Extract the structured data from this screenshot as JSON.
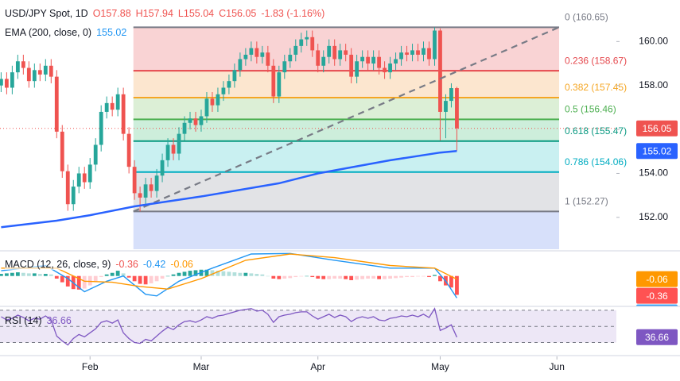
{
  "chart_data": [
    {
      "type": "candlestick",
      "title": "USD/JPY Spot, 1D",
      "ohlc_labels": [
        "O157.88",
        "H157.94",
        "L155.04",
        "C156.05"
      ],
      "change_label": "-1.83 (-1.16%)",
      "up_color": "#26a69a",
      "down_color": "#ef5350",
      "x": [
        0,
        1,
        2,
        3,
        4,
        5,
        6,
        7,
        8,
        9,
        10,
        11,
        12,
        13,
        14,
        15,
        16,
        17,
        18,
        19,
        20,
        21,
        22,
        23,
        24,
        25,
        26,
        27,
        28,
        29,
        30,
        31,
        32,
        33,
        34,
        35,
        36,
        37,
        38,
        39,
        40,
        41,
        42,
        43,
        44,
        45,
        46,
        47,
        48,
        49,
        50,
        51,
        52,
        53,
        54,
        55,
        56,
        57,
        58,
        59,
        60,
        61,
        62,
        63,
        64,
        65,
        66,
        67,
        68,
        69,
        70,
        71,
        72,
        73,
        74,
        75,
        76,
        77,
        78,
        79,
        80,
        81,
        82
      ],
      "open": [
        158.0,
        158.3,
        157.9,
        158.6,
        159.1,
        158.8,
        158.2,
        158.7,
        158.5,
        158.9,
        158.4,
        155.9,
        154.1,
        152.6,
        153.4,
        154.0,
        153.6,
        154.4,
        155.3,
        156.8,
        157.2,
        156.9,
        157.6,
        155.8,
        154.3,
        153.1,
        152.9,
        153.5,
        153.2,
        153.9,
        154.6,
        155.3,
        154.9,
        155.8,
        156.3,
        156.5,
        156.2,
        156.6,
        157.4,
        157.1,
        157.6,
        157.9,
        158.2,
        158.7,
        159.2,
        159.4,
        159.7,
        159.3,
        159.5,
        158.9,
        157.5,
        158.6,
        159.1,
        159.4,
        159.8,
        160.1,
        160.2,
        159.6,
        158.9,
        159.3,
        159.8,
        159.2,
        159.6,
        159.4,
        158.4,
        159.1,
        159.3,
        159.0,
        159.3,
        158.8,
        158.6,
        159.0,
        159.2,
        159.5,
        159.4,
        159.6,
        159.4,
        159.7,
        159.2,
        160.5,
        156.8,
        157.3,
        157.88
      ],
      "high": [
        158.6,
        158.6,
        158.9,
        159.4,
        159.4,
        159.1,
        159.0,
        159.0,
        159.2,
        159.2,
        158.7,
        156.2,
        154.4,
        153.7,
        154.3,
        154.3,
        154.7,
        155.6,
        157.1,
        157.5,
        157.5,
        157.9,
        157.9,
        156.1,
        154.6,
        153.4,
        153.8,
        153.8,
        154.2,
        154.9,
        155.6,
        155.6,
        156.1,
        156.6,
        156.8,
        156.8,
        156.9,
        157.7,
        157.7,
        157.9,
        158.2,
        158.5,
        159.0,
        159.5,
        159.7,
        160.0,
        160.0,
        159.8,
        159.8,
        159.2,
        158.9,
        159.4,
        159.7,
        160.1,
        160.4,
        160.5,
        160.5,
        159.9,
        159.6,
        160.1,
        160.1,
        159.9,
        159.9,
        159.7,
        159.4,
        159.6,
        159.6,
        159.6,
        159.6,
        159.1,
        159.3,
        159.5,
        159.8,
        159.8,
        159.9,
        159.9,
        160.0,
        160.0,
        160.65,
        160.6,
        157.6,
        158.1,
        157.94
      ],
      "low": [
        157.7,
        157.6,
        157.6,
        158.3,
        158.5,
        157.9,
        157.9,
        158.2,
        158.2,
        158.1,
        155.6,
        153.8,
        152.3,
        152.3,
        153.1,
        153.3,
        153.3,
        154.1,
        155.0,
        156.5,
        156.6,
        156.6,
        155.5,
        154.0,
        152.8,
        152.27,
        152.6,
        152.9,
        152.9,
        153.6,
        154.3,
        154.6,
        154.6,
        155.5,
        156.0,
        155.9,
        155.9,
        156.3,
        156.8,
        156.8,
        157.3,
        157.6,
        157.9,
        158.4,
        158.9,
        159.1,
        159.0,
        159.0,
        158.6,
        157.2,
        157.2,
        158.3,
        158.8,
        159.1,
        159.5,
        159.8,
        159.3,
        158.6,
        158.6,
        159.0,
        158.9,
        158.9,
        159.1,
        158.1,
        158.1,
        158.8,
        158.7,
        158.7,
        158.5,
        158.3,
        158.3,
        158.7,
        158.9,
        159.1,
        159.1,
        159.1,
        159.1,
        158.9,
        158.9,
        155.5,
        155.6,
        157.0,
        155.04
      ],
      "close": [
        158.3,
        157.9,
        158.6,
        159.1,
        158.8,
        158.2,
        158.7,
        158.5,
        158.9,
        158.4,
        155.9,
        154.1,
        152.6,
        153.4,
        154.0,
        153.6,
        154.4,
        155.3,
        156.8,
        157.2,
        156.9,
        157.6,
        155.8,
        154.3,
        153.1,
        152.9,
        153.5,
        153.2,
        153.9,
        154.6,
        155.3,
        154.9,
        155.8,
        156.3,
        156.5,
        156.2,
        156.6,
        157.4,
        157.1,
        157.6,
        157.9,
        158.2,
        158.7,
        159.2,
        159.4,
        159.7,
        159.3,
        159.5,
        158.9,
        157.5,
        158.6,
        159.1,
        159.4,
        159.8,
        160.1,
        160.2,
        159.6,
        158.9,
        159.3,
        159.8,
        159.2,
        159.6,
        159.4,
        158.4,
        159.1,
        159.3,
        159.0,
        159.3,
        158.8,
        158.6,
        159.0,
        159.2,
        159.5,
        159.4,
        159.6,
        159.4,
        159.7,
        159.2,
        160.5,
        156.8,
        157.3,
        157.88,
        156.05
      ],
      "xlim": [
        -0.2,
        110.7
      ],
      "xticks": [
        {
          "value": 16,
          "label": "Feb"
        },
        {
          "value": 36,
          "label": "Mar"
        },
        {
          "value": 57,
          "label": "Apr"
        },
        {
          "value": 79,
          "label": "May"
        },
        {
          "value": 100,
          "label": "Jun"
        }
      ],
      "ylim": [
        150.55,
        161.89
      ],
      "yticks": [
        {
          "value": 152,
          "label": "152.00"
        },
        {
          "value": 154,
          "label": "154.00"
        },
        {
          "value": 156,
          "label": "156.00"
        },
        {
          "value": 158,
          "label": "158.00"
        },
        {
          "value": 160,
          "label": "160.00"
        }
      ],
      "ema": {
        "name": "EMA (200, close, 0)",
        "color": "#2962ff",
        "x": [
          0,
          10,
          16,
          24,
          36,
          50,
          57,
          70,
          79,
          82
        ],
        "values": [
          151.55,
          151.85,
          152.1,
          152.5,
          152.95,
          153.55,
          154.0,
          154.6,
          154.95,
          155.02
        ]
      },
      "trend": {
        "color": "#787b86",
        "x": [
          23.8,
          100.4
        ],
        "values": [
          152.27,
          160.65
        ]
      },
      "fib": {
        "x": [
          23.8,
          100.4
        ],
        "levels": [
          {
            "label": "0 (160.65)",
            "value": 160.65,
            "color": "#787b86",
            "fill": "#f9d3d4"
          },
          {
            "label": "0.236 (158.67)",
            "value": 158.67,
            "color": "#e5484d",
            "fill": "#fce6cf"
          },
          {
            "label": "0.382 (157.45)",
            "value": 157.45,
            "color": "#f5a623",
            "fill": "#dcefd6"
          },
          {
            "label": "0.5 (156.46)",
            "value": 156.46,
            "color": "#4caf50",
            "fill": "#cdeedb"
          },
          {
            "label": "0.618 (155.47)",
            "value": 155.47,
            "color": "#089981",
            "fill": "#c9f0f1"
          },
          {
            "label": "0.786 (154.06)",
            "value": 154.06,
            "color": "#00acc1",
            "fill": "#e2e3e6"
          },
          {
            "label": "1 (152.27)",
            "value": 152.27,
            "color": "#787b86",
            "fill": "#d7e0fa"
          }
        ]
      }
    },
    {
      "type": "macd",
      "name": "MACD (12, 26, close, 9)",
      "ylim": [
        -0.55,
        0.45
      ],
      "histogram": {
        "colors": [
          "#26a69a",
          "#b2dfdb",
          "#ffcdd2",
          "#ff5252"
        ],
        "values": [
          0.04,
          0.05,
          0.06,
          0.07,
          0.06,
          0.05,
          0.05,
          0.04,
          0.04,
          0.03,
          -0.05,
          -0.12,
          -0.2,
          -0.25,
          -0.26,
          -0.24,
          -0.18,
          -0.1,
          -0.02,
          0.03,
          0.06,
          0.1,
          0.05,
          -0.03,
          -0.1,
          -0.15,
          -0.16,
          -0.14,
          -0.1,
          -0.05,
          0.0,
          0.03,
          0.06,
          0.08,
          0.1,
          0.11,
          0.12,
          0.12,
          0.11,
          0.1,
          0.09,
          0.08,
          0.07,
          0.06,
          0.06,
          0.05,
          0.04,
          0.03,
          0.0,
          -0.05,
          -0.06,
          -0.05,
          -0.04,
          -0.02,
          -0.01,
          0.0,
          -0.02,
          -0.05,
          -0.06,
          -0.06,
          -0.05,
          -0.05,
          -0.06,
          -0.08,
          -0.07,
          -0.06,
          -0.05,
          -0.05,
          -0.06,
          -0.06,
          -0.05,
          -0.04,
          -0.03,
          -0.02,
          -0.02,
          -0.01,
          -0.01,
          -0.02,
          0.02,
          -0.1,
          -0.18,
          -0.22,
          -0.36
        ]
      },
      "macd": {
        "color": "#2196f3",
        "x": [
          0,
          8,
          12,
          15,
          19,
          22,
          26,
          28,
          32,
          38,
          45,
          52,
          60,
          70,
          78,
          80,
          82
        ],
        "values": [
          0.1,
          0.2,
          -0.05,
          -0.3,
          -0.1,
          0.0,
          -0.35,
          -0.38,
          -0.1,
          0.15,
          0.42,
          0.43,
          0.3,
          0.15,
          0.15,
          -0.1,
          -0.42
        ]
      },
      "signal": {
        "color": "#ff9800",
        "x": [
          0,
          10,
          15,
          20,
          25,
          30,
          36,
          44,
          52,
          60,
          70,
          78,
          82
        ],
        "values": [
          0.15,
          0.15,
          -0.1,
          -0.12,
          -0.2,
          -0.25,
          -0.05,
          0.3,
          0.42,
          0.35,
          0.2,
          0.15,
          -0.06
        ]
      }
    },
    {
      "type": "rsi",
      "name": "RSI (14)",
      "color": "#7e57c2",
      "ylim": [
        14.8,
        73.8
      ],
      "levels": [
        70,
        50,
        30
      ],
      "fill": "#ede7f6",
      "values": [
        62,
        58,
        60,
        64,
        61,
        57,
        60,
        59,
        63,
        58,
        38,
        32,
        27,
        35,
        40,
        37,
        42,
        47,
        55,
        57,
        54,
        58,
        42,
        35,
        30,
        29,
        34,
        32,
        38,
        44,
        49,
        46,
        52,
        56,
        57,
        55,
        58,
        62,
        60,
        63,
        64,
        66,
        68,
        70,
        71,
        72,
        69,
        70,
        65,
        55,
        62,
        64,
        65,
        67,
        68,
        68,
        63,
        59,
        62,
        65,
        61,
        64,
        62,
        56,
        60,
        62,
        60,
        62,
        58,
        57,
        60,
        61,
        63,
        62,
        64,
        62,
        65,
        61,
        72,
        45,
        48,
        52,
        36.66
      ]
    }
  ]
}
